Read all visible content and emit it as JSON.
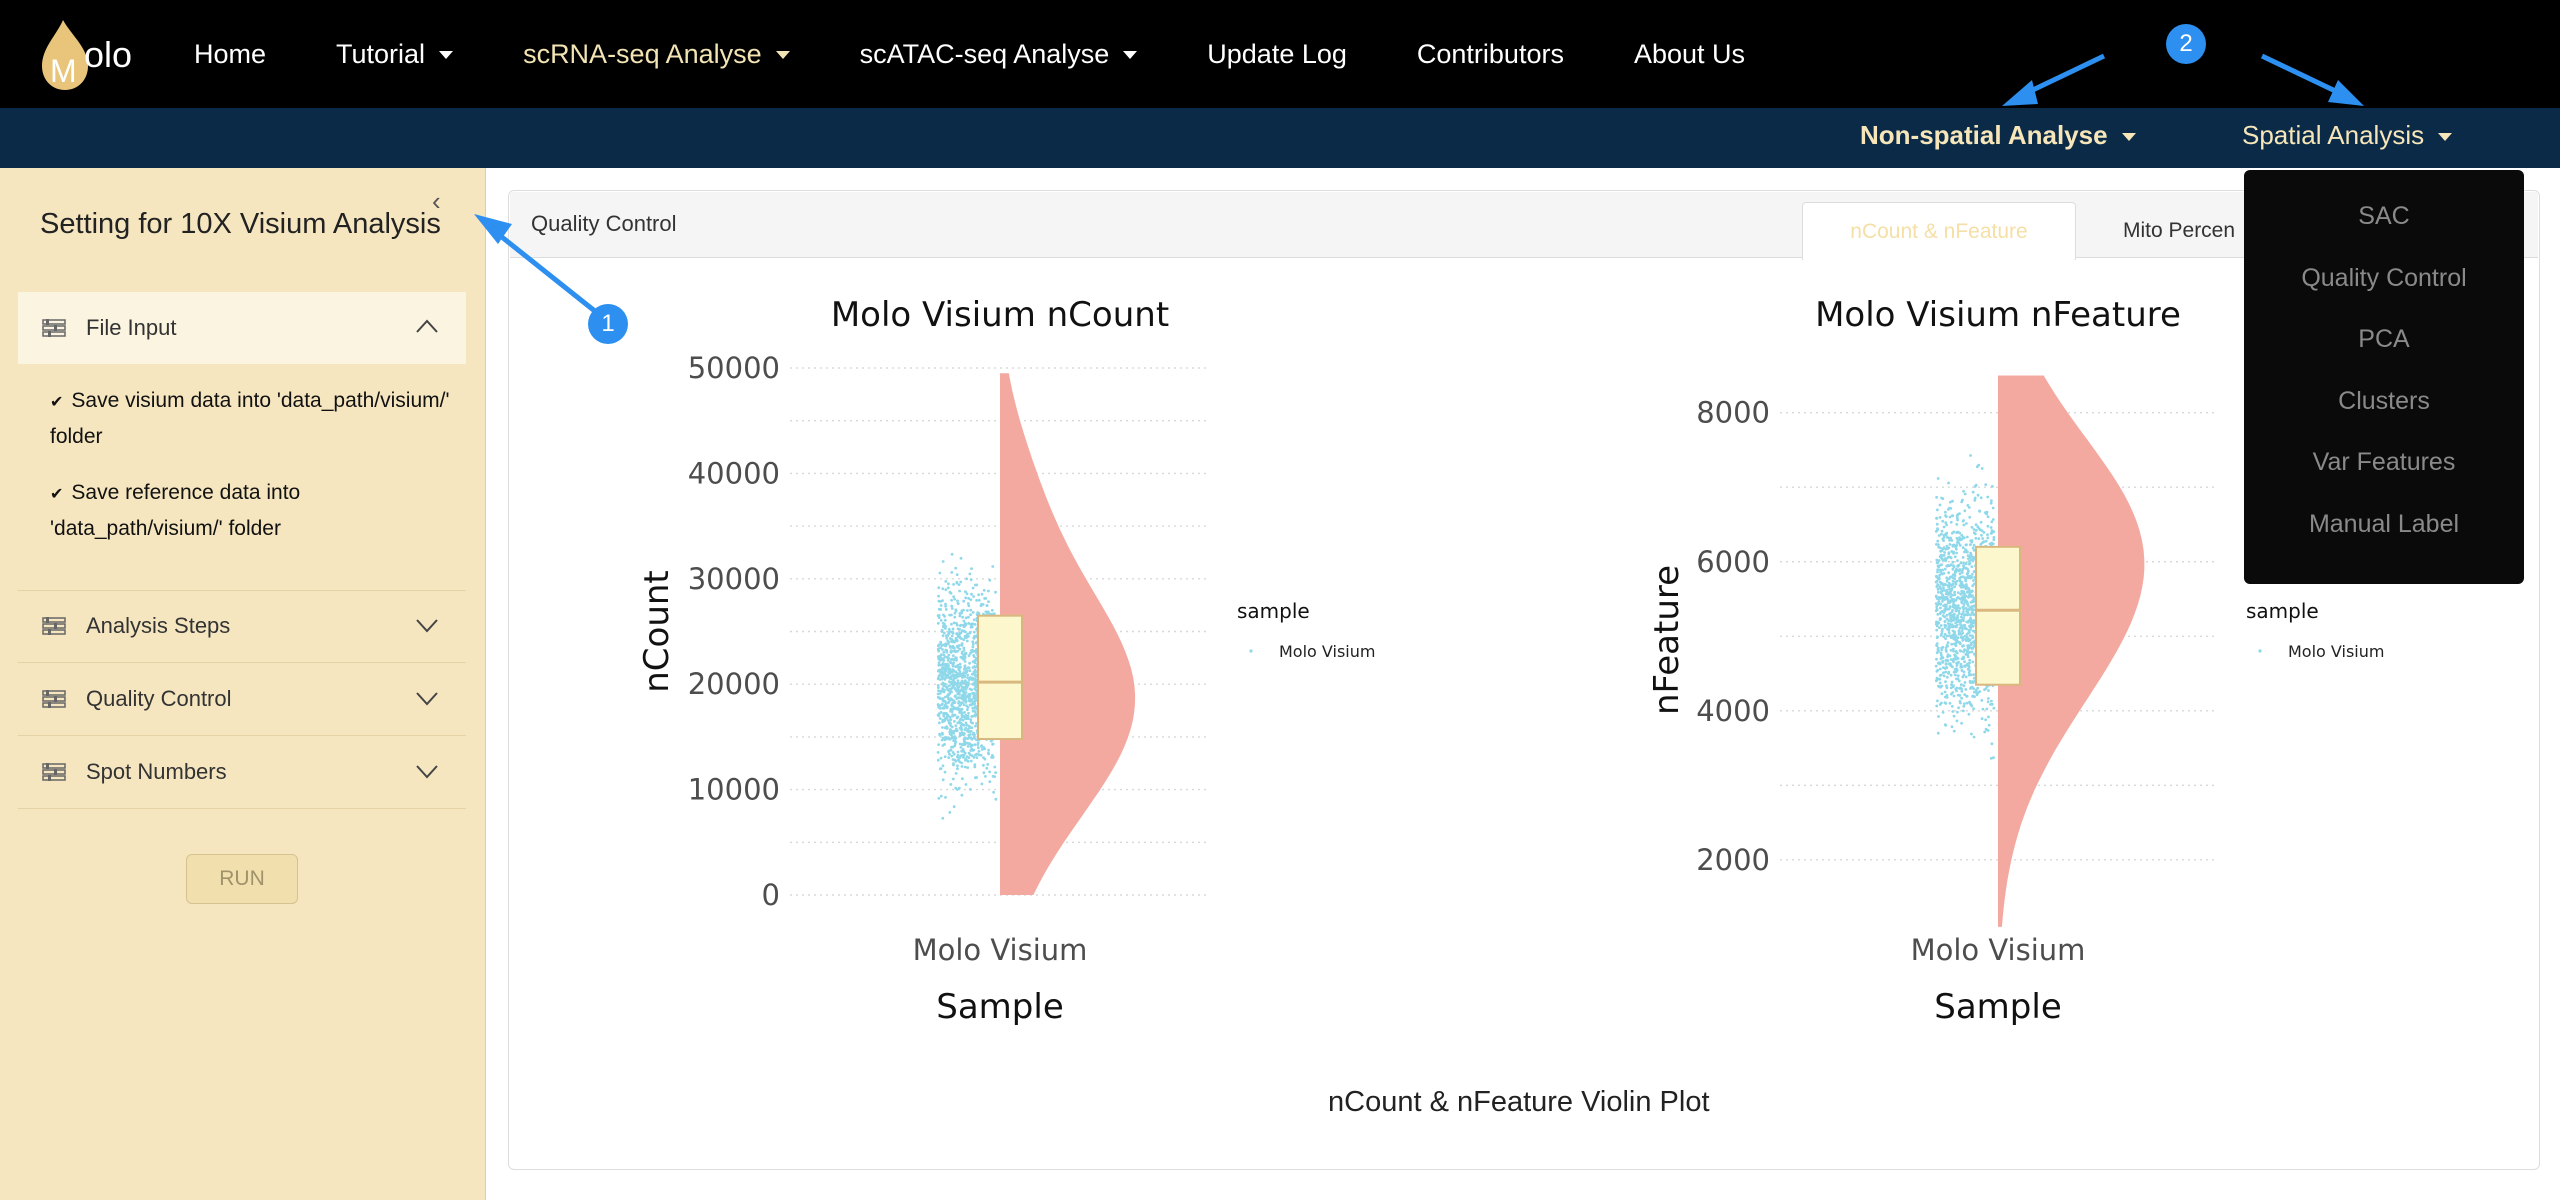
{
  "app": {
    "logo_text": "olo",
    "logo_letter": "M"
  },
  "nav": {
    "items": [
      {
        "label": "Home",
        "dropdown": false,
        "active": false
      },
      {
        "label": "Tutorial",
        "dropdown": true,
        "active": false
      },
      {
        "label": "scRNA-seq Analyse",
        "dropdown": true,
        "active": true
      },
      {
        "label": "scATAC-seq Analyse",
        "dropdown": true,
        "active": false
      },
      {
        "label": "Update Log",
        "dropdown": false,
        "active": false
      },
      {
        "label": "Contributors",
        "dropdown": false,
        "active": false
      },
      {
        "label": "About Us",
        "dropdown": false,
        "active": false
      }
    ]
  },
  "subnav": {
    "non_spatial": "Non-spatial Analyse",
    "spatial": "Spatial Analysis"
  },
  "dropdown": {
    "items": [
      "SAC",
      "Quality Control",
      "PCA",
      "Clusters",
      "Var Features",
      "Manual Label"
    ]
  },
  "sidebar": {
    "title": "Setting for 10X Visium Analysis",
    "file_input": {
      "label": "File Input",
      "notes": [
        "Save visium data into 'data_path/visium/' folder",
        "Save reference data into 'data_path/visium/' folder"
      ]
    },
    "sections": [
      "Analysis Steps",
      "Quality Control",
      "Spot Numbers"
    ],
    "run_label": "RUN"
  },
  "panel": {
    "title": "Quality Control",
    "tabs": [
      "nCount & nFeature",
      "Mito Percen"
    ],
    "caption": "nCount & nFeature Violin Plot"
  },
  "annotations": {
    "badge1": "1",
    "badge2": "2"
  },
  "colors": {
    "violin": "#f4a9a0",
    "points": "#8fd8ea",
    "box": "#fdf7cd",
    "box_border": "#d9b87f",
    "accent": "#2d8ff0"
  },
  "chart_data": [
    {
      "type": "violin",
      "title": "Molo Visium nCount",
      "xlabel": "Sample",
      "ylabel": "nCount",
      "categories": [
        "Molo Visium"
      ],
      "yticks": [
        0,
        10000,
        20000,
        30000,
        40000,
        50000
      ],
      "ylim": [
        0,
        50000
      ],
      "box": {
        "q1": 14800,
        "median": 20200,
        "q3": 26500
      },
      "range": [
        0,
        49500
      ],
      "legend_title": "sample",
      "legend_entries": [
        "Molo Visium"
      ]
    },
    {
      "type": "violin",
      "title": "Molo Visium nFeature",
      "xlabel": "Sample",
      "ylabel": "nFeature",
      "categories": [
        "Molo Visium"
      ],
      "yticks": [
        2000,
        4000,
        6000,
        8000
      ],
      "ylim": [
        1300,
        8600
      ],
      "box": {
        "q1": 4350,
        "median": 5350,
        "q3": 6200
      },
      "range": [
        1100,
        8500
      ],
      "legend_title": "sample",
      "legend_entries": [
        "Molo Visium"
      ]
    }
  ]
}
